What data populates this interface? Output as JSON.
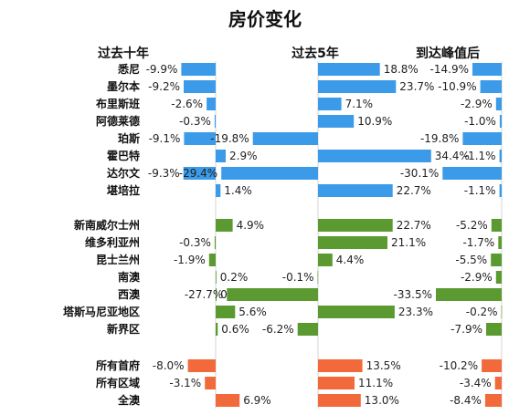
{
  "chart_data": {
    "type": "bar",
    "orientation": "horizontal",
    "title": "房价变化",
    "panels": [
      "过去十年",
      "过去5年",
      "到达峰值后"
    ],
    "groups": [
      {
        "color": "#3b9be8",
        "categories": [
          "悉尼",
          "墨尔本",
          "布里斯班",
          "阿德莱德",
          "珀斯",
          "霍巴特",
          "达尔文",
          "堪培拉"
        ]
      },
      {
        "color": "#5b9a30",
        "categories": [
          "新南威尔士州",
          "维多利亚州",
          "昆士兰州",
          "南澳",
          "西澳",
          "塔斯马尼亚地区",
          "新界区"
        ]
      },
      {
        "color": "#f26a3b",
        "categories": [
          "所有首府",
          "所有区域",
          "全澳"
        ]
      }
    ],
    "series": [
      {
        "name": "过去十年",
        "values": [
          -9.9,
          -9.2,
          -2.6,
          -0.3,
          -9.1,
          2.9,
          -9.3,
          1.4,
          4.9,
          -0.3,
          -1.9,
          0.2,
          0.3,
          5.6,
          0.6,
          -8.0,
          -3.1,
          6.9
        ]
      },
      {
        "name": "过去5年",
        "values": [
          18.8,
          23.7,
          7.1,
          10.9,
          -19.8,
          34.4,
          -29.4,
          22.7,
          22.7,
          21.1,
          4.4,
          -0.1,
          -27.7,
          23.3,
          -6.2,
          13.5,
          11.1,
          13.0
        ]
      },
      {
        "name": "到达峰值后",
        "values": [
          -14.9,
          -10.9,
          -2.9,
          -1.0,
          -19.8,
          -1.1,
          -30.1,
          -1.1,
          -5.2,
          -1.7,
          -5.5,
          -2.9,
          -33.5,
          -0.2,
          -7.9,
          -10.2,
          -3.4,
          -8.4
        ]
      }
    ],
    "value_format": "percent, 1 decimal"
  }
}
